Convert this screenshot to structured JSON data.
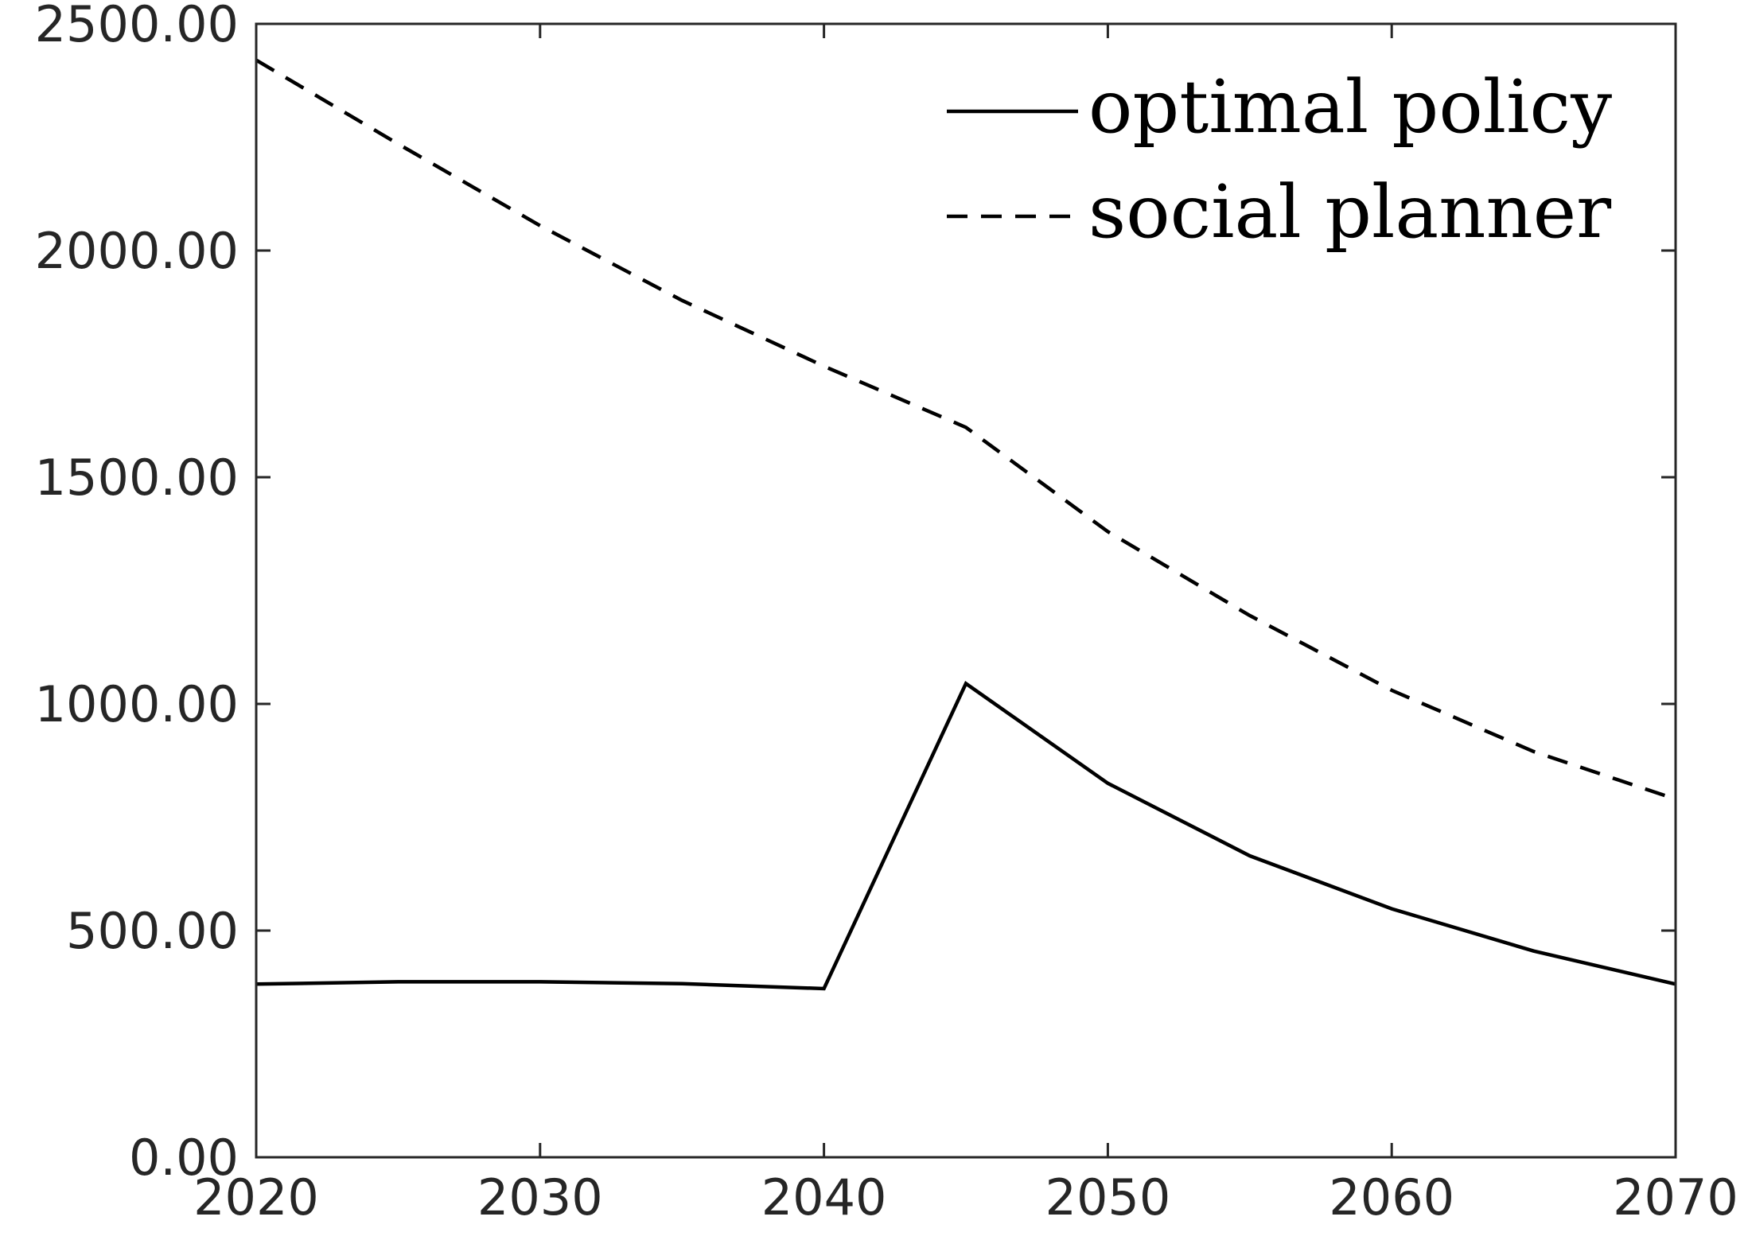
{
  "chart_data": {
    "type": "line",
    "title": "",
    "xlabel": "",
    "ylabel": "",
    "xlim": [
      2020,
      2070
    ],
    "ylim": [
      0,
      2500
    ],
    "grid": false,
    "legend_position": "top-right",
    "x_ticks": [
      2020,
      2030,
      2040,
      2050,
      2060,
      2070
    ],
    "x_tick_labels": [
      "2020",
      "2030",
      "2040",
      "2050",
      "2060",
      "2070"
    ],
    "y_ticks": [
      0,
      500,
      1000,
      1500,
      2000,
      2500
    ],
    "y_tick_labels": [
      "0.00",
      "500.00",
      "1000.00",
      "1500.00",
      "2000.00",
      "2500.00"
    ],
    "x": [
      2020,
      2025,
      2030,
      2035,
      2040,
      2045,
      2050,
      2055,
      2060,
      2065,
      2070
    ],
    "series": [
      {
        "name": "optimal policy",
        "style": "solid",
        "color": "#000000",
        "values": [
          382,
          387,
          387,
          383,
          372,
          1045,
          825,
          665,
          548,
          455,
          382
        ]
      },
      {
        "name": "social planner",
        "style": "dashed",
        "color": "#000000",
        "values": [
          2420,
          2235,
          2055,
          1890,
          1745,
          1610,
          1380,
          1195,
          1030,
          895,
          790
        ]
      }
    ]
  }
}
